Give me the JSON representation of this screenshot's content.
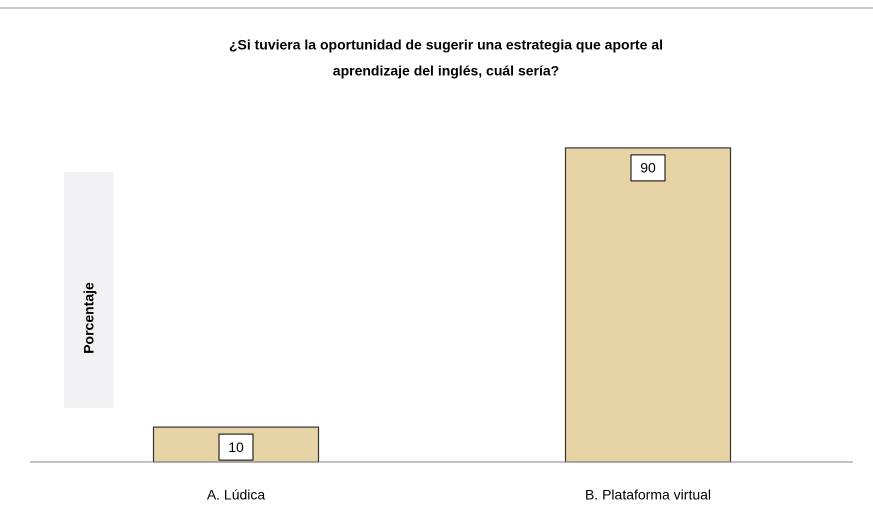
{
  "chart_data": {
    "type": "bar",
    "title": [
      "¿Si tuviera la oportunidad  de sugerir una estrategia que aporte al",
      "aprendizaje del inglés, cuál sería?"
    ],
    "y_label": "Porcentaje",
    "categories": [
      "A. Lúdica",
      "B. Plataforma virtual"
    ],
    "values": [
      10,
      90
    ],
    "color": "#e6d4a6",
    "ylim": [
      0,
      100
    ]
  }
}
